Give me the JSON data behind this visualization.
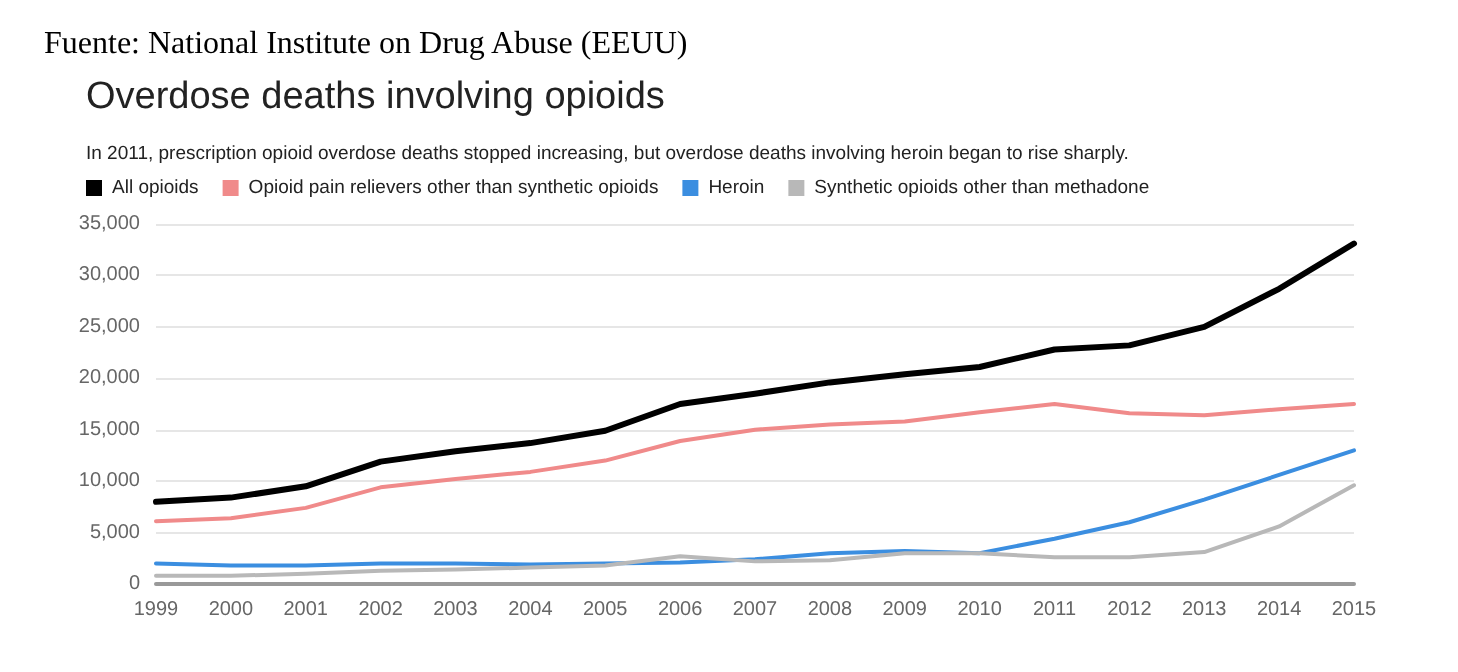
{
  "chart_data": {
    "type": "line",
    "title": "Overdose deaths involving opioids",
    "subtitle": "In 2011, prescription opioid overdose deaths stopped increasing, but overdose deaths involving heroin began to rise sharply.",
    "annotations": [
      "Fuente: National Institute on Drug Abuse (EEUU)"
    ],
    "categories": [
      "1999",
      "2000",
      "2001",
      "2002",
      "2003",
      "2004",
      "2005",
      "2006",
      "2007",
      "2008",
      "2009",
      "2010",
      "2011",
      "2012",
      "2013",
      "2014",
      "2015"
    ],
    "series": [
      {
        "name": "All opioids",
        "color": "#000000",
        "values": [
          8000,
          8400,
          9500,
          11900,
          12900,
          13700,
          14900,
          17500,
          18500,
          19600,
          20400,
          21100,
          22800,
          23200,
          25000,
          28700,
          33100
        ]
      },
      {
        "name": "Opioid pain relievers other than synthetic opioids",
        "color": "#f08a8a",
        "values": [
          6100,
          6400,
          7400,
          9400,
          10200,
          10900,
          12000,
          13900,
          15000,
          15500,
          15800,
          16700,
          17500,
          16600,
          16400,
          17000,
          17500
        ]
      },
      {
        "name": "Heroin",
        "color": "#3b8ee0",
        "values": [
          2000,
          1800,
          1800,
          2000,
          2000,
          1900,
          2000,
          2100,
          2400,
          3000,
          3200,
          3000,
          4400,
          6000,
          8200,
          10600,
          13000
        ]
      },
      {
        "name": "Synthetic opioids other than methadone",
        "color": "#b8b8b8",
        "values": [
          800,
          800,
          1000,
          1300,
          1400,
          1600,
          1800,
          2700,
          2200,
          2300,
          3000,
          3000,
          2600,
          2600,
          3100,
          5600,
          9600
        ]
      }
    ],
    "ylim": [
      0,
      35000
    ],
    "yticks": [
      0,
      {
        "value": 5000,
        "label": "5,000"
      },
      {
        "value": 10000,
        "label": "10,000"
      },
      {
        "value": 15000,
        "label": "15,000"
      },
      {
        "value": 20000,
        "label": "20,000"
      },
      {
        "value": 25000,
        "label": "25,000"
      },
      {
        "value": 30000,
        "label": "30,000"
      },
      {
        "value": 35000,
        "label": "35,000"
      }
    ],
    "grid": "y",
    "legend": "top left",
    "marker": "none",
    "line_style": "solid"
  }
}
